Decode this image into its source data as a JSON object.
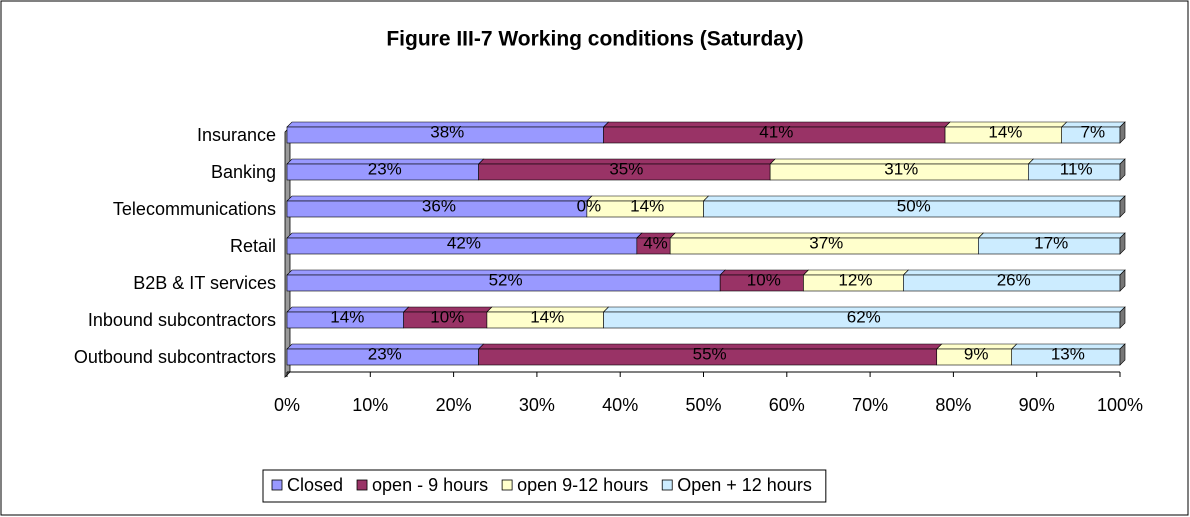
{
  "chart_data": {
    "type": "bar",
    "orientation": "horizontal",
    "stacked": true,
    "title": "Figure III-7 Working conditions (Saturday)",
    "categories": [
      "Insurance",
      "Banking",
      "Telecommunications",
      "Retail",
      "B2B & IT services",
      "Inbound subcontractors",
      "Outbound subcontractors"
    ],
    "series": [
      {
        "name": "Closed",
        "color": "#9999ff",
        "values": [
          38,
          23,
          36,
          42,
          52,
          14,
          23
        ],
        "value_labels": [
          "38%",
          "23%",
          "36%",
          "42%",
          "52%",
          "14%",
          "23%"
        ]
      },
      {
        "name": "open - 9 hours",
        "color": "#993366",
        "values": [
          41,
          35,
          0,
          4,
          10,
          10,
          55
        ],
        "value_labels": [
          "41%",
          "35%",
          "0%",
          "4%",
          "10%",
          "10%",
          "55%"
        ]
      },
      {
        "name": "open 9-12 hours",
        "color": "#ffffcc",
        "values": [
          14,
          31,
          14,
          37,
          12,
          14,
          9
        ],
        "value_labels": [
          "14%",
          "31%",
          "14%",
          "37%",
          "12%",
          "14%",
          "9%"
        ]
      },
      {
        "name": "Open + 12 hours",
        "color": "#ccecff",
        "values": [
          7,
          11,
          50,
          17,
          26,
          62,
          13
        ],
        "value_labels": [
          "7%",
          "11%",
          "50%",
          "17%",
          "26%",
          "62%",
          "13%"
        ]
      }
    ],
    "xlim": [
      0,
      100
    ],
    "xticks": [
      {
        "value": 0,
        "label": "0%"
      },
      {
        "value": 10,
        "label": "10%"
      },
      {
        "value": 20,
        "label": "20%"
      },
      {
        "value": 30,
        "label": "30%"
      },
      {
        "value": 40,
        "label": "40%"
      },
      {
        "value": 50,
        "label": "50%"
      },
      {
        "value": 60,
        "label": "60%"
      },
      {
        "value": 70,
        "label": "70%"
      },
      {
        "value": 80,
        "label": "80%"
      },
      {
        "value": 90,
        "label": "90%"
      },
      {
        "value": 100,
        "label": "100%"
      }
    ],
    "legend": "bottom"
  }
}
